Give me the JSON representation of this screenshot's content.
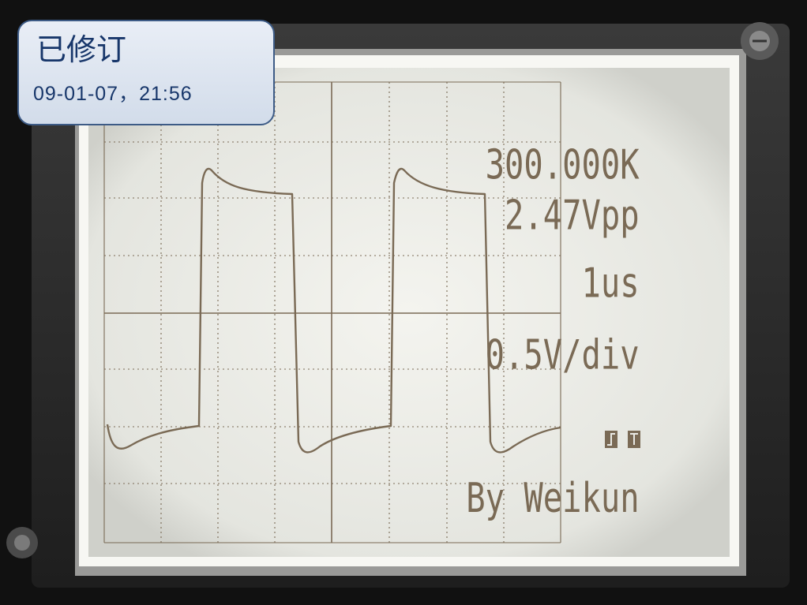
{
  "photo_overlay": {
    "title": "已修订",
    "date": "09-01-07，21:56"
  },
  "readouts": {
    "frequency": "300.000K",
    "amplitude": "2.47Vpp",
    "timebase": "1us",
    "volts_per_div": "0.5V/div",
    "credit": "By Weikun"
  },
  "trigger_icons": [
    "rising-edge-trigger-icon",
    "trigger-mode-icon"
  ],
  "colors": {
    "lcd_background": "#eaeae4",
    "lcd_ink": "#7a6a55",
    "bezel": "#2b2b2b",
    "overlay_border": "#3d5b86",
    "overlay_text": "#17366a"
  }
}
